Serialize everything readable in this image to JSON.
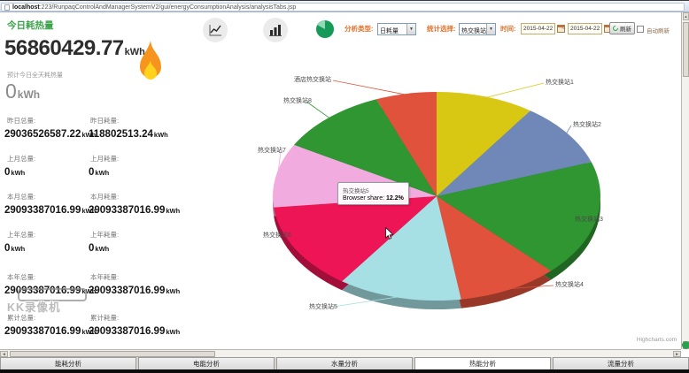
{
  "browser": {
    "url_host": "localhost",
    "url_path": ":223/RunpaqControlAndManagerSystemV2/gui/energyConsumptionAnalysis/analysisTabs.jsp"
  },
  "toolbar": {
    "analysis_type_label": "分析类型:",
    "analysis_type_value": "日耗量",
    "stat_select_label": "统计选择:",
    "stat_select_value": "热交换站",
    "time_label": "时间:",
    "date_from": "2015-04-22",
    "date_separator": "~",
    "date_to": "2015-04-22",
    "refresh_label": "刷新",
    "auto_refresh_label": "自动刷新"
  },
  "left_panel": {
    "title": "今日耗热量",
    "today_value": "56860429.77",
    "today_unit": "kWh",
    "forecast_label": "预计今日全天耗热量",
    "forecast_value": "0",
    "forecast_unit": "kWh",
    "stats": [
      {
        "label": "昨日总量:",
        "value": "29036526587.22",
        "unit": "kWh"
      },
      {
        "label": "昨日耗量:",
        "value": "118802513.24",
        "unit": "kWh"
      },
      {
        "label": "上月总量:",
        "value": "0",
        "unit": "kWh"
      },
      {
        "label": "上月耗量:",
        "value": "0",
        "unit": "kWh"
      },
      {
        "label": "本月总量:",
        "value": "29093387016.99",
        "unit": "kWh"
      },
      {
        "label": "本月耗量:",
        "value": "29093387016.99",
        "unit": "kWh"
      },
      {
        "label": "上年总量:",
        "value": "0",
        "unit": "kWh"
      },
      {
        "label": "上年耗量:",
        "value": "0",
        "unit": "kWh"
      },
      {
        "label": "本年总量:",
        "value": "29093387016.99",
        "unit": "kWh"
      },
      {
        "label": "本年耗量:",
        "value": "29093387016.99",
        "unit": "kWh"
      },
      {
        "label": "累计总量:",
        "value": "29093387016.99",
        "unit": "kWh"
      },
      {
        "label": "累计耗量:",
        "value": "29093387016.99",
        "unit": "kWh"
      }
    ],
    "watermark": "KK录像机"
  },
  "chart_data": {
    "type": "pie",
    "effect_3d": true,
    "categories": [
      "热交换站1",
      "热交换站2",
      "热交换站3",
      "热交换站4",
      "热交换站5",
      "热交换站6",
      "热交换站7",
      "热交换站8",
      "酒店热交换站"
    ],
    "values": [
      9.7,
      10.0,
      18.0,
      9.9,
      12.2,
      13.5,
      9.9,
      10.8,
      6.0
    ],
    "colors": [
      "#d8c713",
      "#6f88b8",
      "#2f9632",
      "#e0523c",
      "#a6dfe4",
      "#ee1556",
      "#f2abdf",
      "#2f9632",
      "#e0523c"
    ],
    "tooltip": {
      "name": "热交换站5",
      "series": "Browser share:",
      "value": "12.2%"
    },
    "credits": "Highcharts.com",
    "legend_position": "none"
  },
  "tabs": [
    {
      "label": "能耗分析",
      "active": false
    },
    {
      "label": "电能分析",
      "active": false
    },
    {
      "label": "水量分析",
      "active": false
    },
    {
      "label": "热能分析",
      "active": true
    },
    {
      "label": "流量分析",
      "active": false
    }
  ]
}
